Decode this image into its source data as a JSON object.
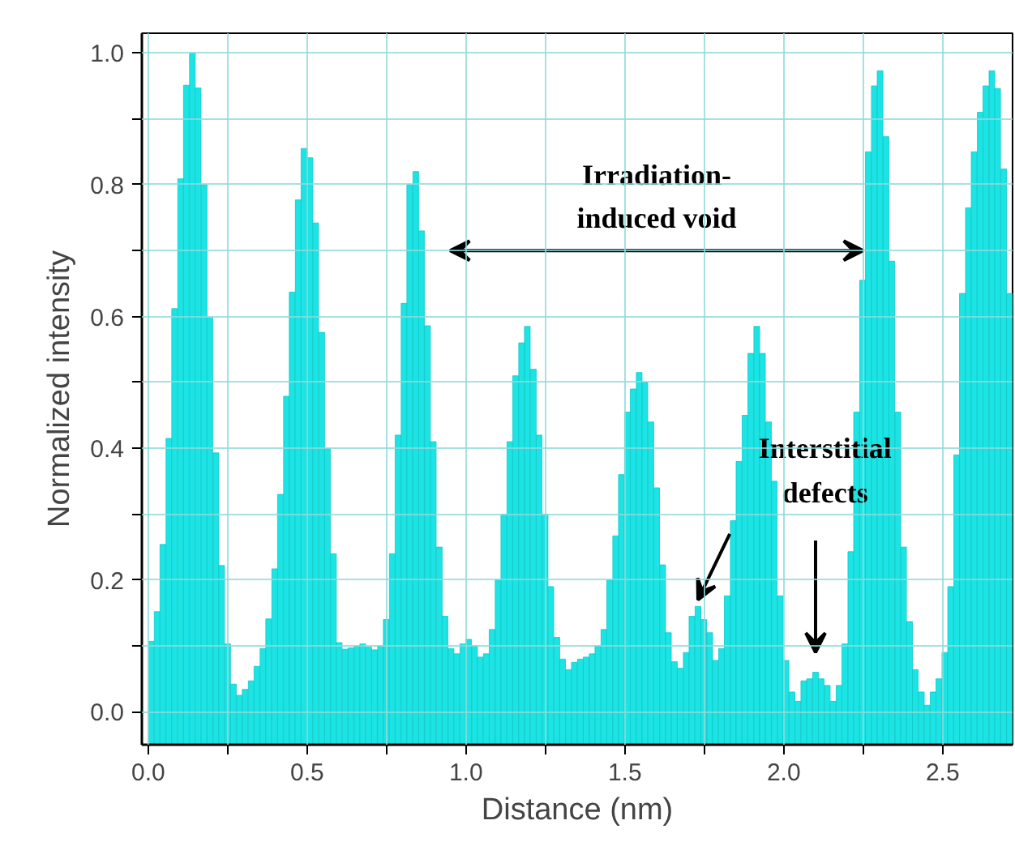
{
  "chart_data": {
    "type": "bar",
    "xlabel": "Distance (nm)",
    "ylabel": "Normalized intensity",
    "x": [
      0.009,
      0.028,
      0.046,
      0.065,
      0.083,
      0.102,
      0.12,
      0.139,
      0.157,
      0.176,
      0.194,
      0.213,
      0.231,
      0.25,
      0.268,
      0.287,
      0.305,
      0.324,
      0.342,
      0.361,
      0.379,
      0.398,
      0.416,
      0.435,
      0.453,
      0.472,
      0.49,
      0.509,
      0.527,
      0.546,
      0.564,
      0.583,
      0.601,
      0.62,
      0.638,
      0.657,
      0.675,
      0.694,
      0.712,
      0.731,
      0.749,
      0.768,
      0.786,
      0.805,
      0.823,
      0.842,
      0.86,
      0.879,
      0.897,
      0.916,
      0.934,
      0.953,
      0.971,
      0.99,
      1.008,
      1.027,
      1.045,
      1.064,
      1.082,
      1.101,
      1.119,
      1.138,
      1.156,
      1.175,
      1.193,
      1.212,
      1.23,
      1.249,
      1.267,
      1.286,
      1.304,
      1.323,
      1.341,
      1.36,
      1.378,
      1.397,
      1.415,
      1.434,
      1.452,
      1.471,
      1.489,
      1.508,
      1.526,
      1.545,
      1.563,
      1.582,
      1.6,
      1.619,
      1.637,
      1.656,
      1.674,
      1.693,
      1.711,
      1.73,
      1.748,
      1.767,
      1.785,
      1.804,
      1.822,
      1.841,
      1.859,
      1.878,
      1.896,
      1.915,
      1.933,
      1.952,
      1.97,
      1.989,
      2.007,
      2.026,
      2.044,
      2.063,
      2.081,
      2.1,
      2.118,
      2.137,
      2.155,
      2.174,
      2.192,
      2.211,
      2.229,
      2.248,
      2.266,
      2.285,
      2.303,
      2.322,
      2.34,
      2.359,
      2.377,
      2.396,
      2.414,
      2.433,
      2.451,
      2.47,
      2.488,
      2.507,
      2.525,
      2.544,
      2.562,
      2.581,
      2.599,
      2.618,
      2.636,
      2.655,
      2.673,
      2.692,
      2.71
    ],
    "values": [
      0.157,
      0.202,
      0.304,
      0.465,
      0.662,
      0.859,
      1.001,
      1.05,
      0.997,
      0.85,
      0.648,
      0.443,
      0.272,
      0.153,
      0.092,
      0.075,
      0.084,
      0.097,
      0.119,
      0.146,
      0.191,
      0.267,
      0.38,
      0.529,
      0.687,
      0.827,
      0.905,
      0.891,
      0.792,
      0.626,
      0.45,
      0.29,
      0.155,
      0.145,
      0.147,
      0.15,
      0.153,
      0.148,
      0.144,
      0.15,
      0.19,
      0.29,
      0.47,
      0.67,
      0.85,
      0.87,
      0.78,
      0.636,
      0.46,
      0.3,
      0.195,
      0.146,
      0.138,
      0.153,
      0.16,
      0.15,
      0.133,
      0.138,
      0.175,
      0.25,
      0.35,
      0.46,
      0.56,
      0.61,
      0.635,
      0.57,
      0.47,
      0.35,
      0.24,
      0.163,
      0.13,
      0.114,
      0.125,
      0.13,
      0.133,
      0.138,
      0.15,
      0.175,
      0.25,
      0.317,
      0.41,
      0.505,
      0.54,
      0.565,
      0.55,
      0.49,
      0.39,
      0.273,
      0.17,
      0.126,
      0.116,
      0.14,
      0.195,
      0.21,
      0.19,
      0.17,
      0.128,
      0.146,
      0.226,
      0.34,
      0.43,
      0.5,
      0.594,
      0.635,
      0.594,
      0.49,
      0.4,
      0.226,
      0.128,
      0.08,
      0.066,
      0.097,
      0.1,
      0.11,
      0.1,
      0.09,
      0.066,
      0.09,
      0.153,
      0.293,
      0.505,
      0.705,
      0.9,
      1.0,
      1.023,
      0.923,
      0.734,
      0.505,
      0.3,
      0.187,
      0.114,
      0.08,
      0.06,
      0.08,
      0.1,
      0.14,
      0.24,
      0.44,
      0.685,
      0.815,
      0.9,
      0.96,
      1.0,
      1.023,
      0.996,
      0.874,
      0.685
    ],
    "base": [
      -0.05,
      -0.05,
      -0.05,
      -0.05,
      -0.05,
      -0.05,
      -0.05,
      -0.05,
      -0.05,
      -0.05,
      -0.05,
      -0.05,
      -0.05,
      -0.05,
      -0.05,
      -0.05,
      -0.05,
      -0.05,
      -0.05,
      -0.05,
      -0.05,
      -0.05,
      -0.05,
      -0.05,
      -0.05,
      -0.05,
      -0.05,
      -0.05,
      -0.05,
      -0.05,
      -0.05,
      -0.05,
      -0.05,
      -0.05,
      -0.05,
      -0.05,
      -0.05,
      -0.05,
      -0.05,
      -0.05,
      -0.05,
      -0.05,
      -0.05,
      -0.05,
      -0.05,
      -0.05,
      -0.05,
      -0.05,
      -0.05,
      -0.05,
      -0.05,
      -0.05,
      -0.05,
      -0.05,
      -0.05,
      -0.05,
      -0.05,
      -0.05,
      -0.05,
      -0.05,
      -0.05,
      -0.05,
      -0.05,
      -0.05,
      -0.05,
      -0.05,
      -0.05,
      -0.05,
      -0.05,
      -0.05,
      -0.05,
      -0.05,
      -0.05,
      -0.05,
      -0.05,
      -0.05,
      -0.05,
      -0.05,
      -0.05,
      -0.05,
      -0.05,
      -0.05,
      -0.05,
      -0.05,
      -0.05,
      -0.05,
      -0.05,
      -0.05,
      -0.05,
      -0.05,
      -0.05,
      -0.05,
      -0.05,
      -0.05,
      -0.05,
      -0.05,
      -0.05,
      -0.05,
      -0.05,
      -0.05,
      -0.05,
      -0.05,
      -0.05,
      -0.05,
      -0.05,
      -0.05,
      -0.05,
      -0.05,
      -0.05,
      -0.05,
      -0.05,
      -0.05,
      -0.05,
      -0.05,
      -0.05,
      -0.05,
      -0.05,
      -0.05,
      -0.05,
      -0.05,
      -0.05,
      -0.05,
      -0.05,
      -0.05,
      -0.05,
      -0.05,
      -0.05,
      -0.05,
      -0.05,
      -0.05,
      -0.05,
      -0.05,
      -0.05,
      -0.05,
      -0.05,
      -0.05,
      -0.05,
      -0.05,
      -0.05,
      -0.05,
      -0.05,
      -0.05,
      -0.05,
      -0.05,
      -0.05,
      -0.05,
      -0.05
    ],
    "color": "#1ce4e4",
    "xlim": [
      -0.02,
      2.72
    ],
    "ylim": [
      -0.05,
      1.03
    ],
    "xticks": [
      {
        "value": 0,
        "label": "0.0"
      },
      {
        "value": 0.25,
        "label": null
      },
      {
        "value": 0.5,
        "label": "0.5"
      },
      {
        "value": 0.75,
        "label": null
      },
      {
        "value": 1,
        "label": "1.0"
      },
      {
        "value": 1.25,
        "label": null
      },
      {
        "value": 1.5,
        "label": "1.5"
      },
      {
        "value": 1.75,
        "label": null
      },
      {
        "value": 2,
        "label": "2.0"
      },
      {
        "value": 2.25,
        "label": null
      },
      {
        "value": 2.5,
        "label": "2.5"
      }
    ],
    "yticks": [
      {
        "value": 0,
        "label": "0.0"
      },
      {
        "value": 0.1,
        "label": null
      },
      {
        "value": 0.2,
        "label": "0.2"
      },
      {
        "value": 0.3,
        "label": null
      },
      {
        "value": 0.4,
        "label": "0.4"
      },
      {
        "value": 0.5,
        "label": null
      },
      {
        "value": 0.6,
        "label": "0.6"
      },
      {
        "value": 0.7,
        "label": null
      },
      {
        "value": 0.8,
        "label": "0.8"
      },
      {
        "value": 0.9,
        "label": null
      },
      {
        "value": 1,
        "label": "1.0"
      }
    ],
    "grid": true,
    "annotations": [
      {
        "text": "Irradiation-\ninduced void",
        "x": 2.25,
        "y": 0.7
      },
      "Interstitial\ndefects"
    ]
  }
}
